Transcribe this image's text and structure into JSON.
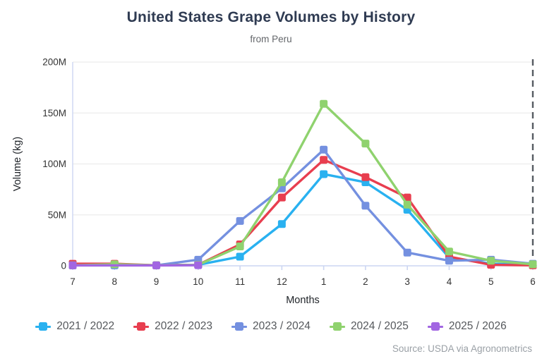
{
  "chart_data": {
    "type": "line",
    "title": "United States Grape Volumes by History",
    "subtitle": "from Peru",
    "xlabel": "Months",
    "ylabel": "Volume (kg)",
    "source": "Source: USDA via Agronometrics",
    "x_categories": [
      "7",
      "8",
      "9",
      "10",
      "11",
      "12",
      "1",
      "2",
      "3",
      "4",
      "5",
      "6"
    ],
    "y_ticks": [
      0,
      50,
      100,
      150,
      200
    ],
    "y_tick_labels": [
      "0",
      "50M",
      "100M",
      "150M",
      "200M"
    ],
    "ylim": [
      0,
      200
    ],
    "y_unit": "millions of kg",
    "grid": true,
    "legend_position": "bottom",
    "dashed_divider_at_category": "6",
    "series": [
      {
        "name": "2021 / 2022",
        "color": "#29b1f0",
        "values": [
          0.5,
          0.5,
          0.5,
          1,
          9,
          41,
          90,
          82,
          55,
          8,
          2,
          1
        ]
      },
      {
        "name": "2022 / 2023",
        "color": "#e83e4f",
        "values": [
          2,
          2,
          0.5,
          1,
          21,
          67,
          104,
          87,
          67,
          9,
          1,
          0.5
        ]
      },
      {
        "name": "2023 / 2024",
        "color": "#7490e0",
        "values": [
          0.5,
          0.5,
          0.5,
          6,
          44,
          76,
          114,
          59,
          13,
          5,
          6,
          2
        ]
      },
      {
        "name": "2024 / 2025",
        "color": "#8fd26e",
        "values": [
          0.5,
          1.5,
          0.5,
          1,
          19,
          82,
          159,
          120,
          60,
          14,
          5,
          1.5
        ]
      },
      {
        "name": "2025 / 2026",
        "color": "#a266e2",
        "values": [
          0.4,
          null,
          0.4,
          0.6,
          null,
          null,
          null,
          null,
          null,
          null,
          null,
          null
        ]
      }
    ],
    "colors": {
      "background": "#ffffff",
      "title": "#2f3b52",
      "subtitle": "#63666a",
      "tick_label": "#333333",
      "axis_title": "#1f2328",
      "grid": "#ececec",
      "axis_line": "#ccd6f2",
      "divider": "#565b61",
      "legend_text": "#55585c",
      "source_text": "#9aa0a6"
    }
  }
}
